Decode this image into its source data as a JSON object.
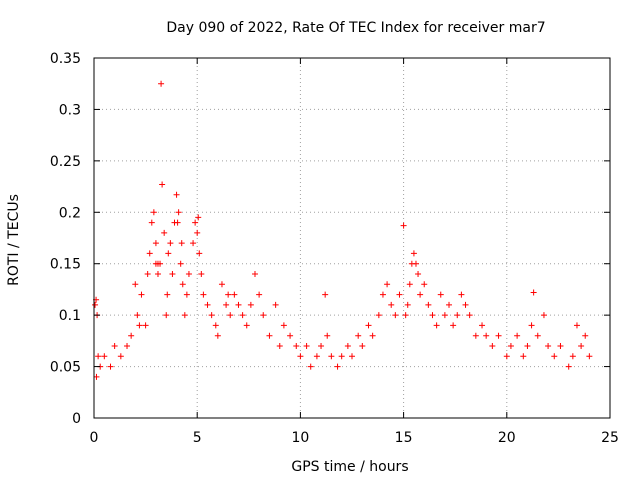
{
  "chart_data": {
    "type": "scatter",
    "title": "Day 090 of 2022, Rate Of TEC Index for receiver mar7",
    "xlabel": "GPS time / hours",
    "ylabel": "ROTI / TECUs",
    "xlim": [
      0,
      25
    ],
    "ylim": [
      0,
      0.35
    ],
    "x_ticks": [
      "0",
      "5",
      "10",
      "15",
      "20",
      "25"
    ],
    "y_ticks": [
      "0",
      "0.05",
      "0.1",
      "0.15",
      "0.2",
      "0.25",
      "0.3",
      "0.35"
    ],
    "grid": true,
    "marker": "+",
    "color": "#ff0000",
    "series": [
      {
        "x": [
          0.05,
          0.1,
          0.15,
          0.2,
          0.12,
          0.3,
          0.5,
          0.8,
          1.0,
          1.3,
          1.6,
          1.8,
          2.0,
          2.1,
          2.2,
          2.3,
          2.5,
          2.6,
          2.7,
          2.8,
          2.9,
          3.0,
          3.0,
          3.1,
          3.1,
          3.2,
          3.25,
          3.3,
          3.4,
          3.5,
          3.55,
          3.6,
          3.7,
          3.8,
          3.9,
          4.0,
          4.05,
          4.1,
          4.2,
          4.25,
          4.3,
          4.4,
          4.5,
          4.6,
          4.8,
          4.9,
          5.0,
          5.05,
          5.1,
          5.2,
          5.3,
          5.5,
          5.7,
          5.9,
          6.0,
          6.2,
          6.4,
          6.5,
          6.6,
          6.8,
          7.0,
          7.2,
          7.4,
          7.6,
          7.8,
          8.0,
          8.2,
          8.5,
          8.8,
          9.0,
          9.2,
          9.5,
          9.8,
          10.0,
          10.3,
          10.5,
          10.8,
          11.0,
          11.2,
          11.3,
          11.5,
          11.8,
          12.0,
          12.3,
          12.5,
          12.8,
          13.0,
          13.3,
          13.5,
          13.8,
          14.0,
          14.2,
          14.4,
          14.6,
          14.8,
          15.0,
          15.1,
          15.2,
          15.3,
          15.4,
          15.5,
          15.6,
          15.7,
          15.8,
          16.0,
          16.2,
          16.4,
          16.6,
          16.8,
          17.0,
          17.2,
          17.4,
          17.6,
          17.8,
          18.0,
          18.2,
          18.5,
          18.8,
          19.0,
          19.3,
          19.6,
          20.0,
          20.2,
          20.5,
          20.8,
          21.0,
          21.2,
          21.3,
          21.5,
          21.8,
          22.0,
          22.3,
          22.6,
          23.0,
          23.2,
          23.4,
          23.6,
          23.8,
          24.0
        ],
        "y": [
          0.11,
          0.115,
          0.1,
          0.06,
          0.04,
          0.05,
          0.06,
          0.05,
          0.07,
          0.06,
          0.07,
          0.08,
          0.13,
          0.1,
          0.09,
          0.12,
          0.09,
          0.14,
          0.16,
          0.19,
          0.2,
          0.17,
          0.15,
          0.14,
          0.15,
          0.15,
          0.325,
          0.227,
          0.18,
          0.1,
          0.12,
          0.16,
          0.17,
          0.14,
          0.19,
          0.217,
          0.19,
          0.2,
          0.15,
          0.17,
          0.13,
          0.1,
          0.12,
          0.14,
          0.17,
          0.19,
          0.18,
          0.195,
          0.16,
          0.14,
          0.12,
          0.11,
          0.1,
          0.09,
          0.08,
          0.13,
          0.11,
          0.12,
          0.1,
          0.12,
          0.11,
          0.1,
          0.09,
          0.11,
          0.14,
          0.12,
          0.1,
          0.08,
          0.11,
          0.07,
          0.09,
          0.08,
          0.07,
          0.06,
          0.07,
          0.05,
          0.06,
          0.07,
          0.12,
          0.08,
          0.06,
          0.05,
          0.06,
          0.07,
          0.06,
          0.08,
          0.07,
          0.09,
          0.08,
          0.1,
          0.12,
          0.13,
          0.11,
          0.1,
          0.12,
          0.187,
          0.1,
          0.11,
          0.13,
          0.15,
          0.16,
          0.15,
          0.14,
          0.12,
          0.13,
          0.11,
          0.1,
          0.09,
          0.12,
          0.1,
          0.11,
          0.09,
          0.1,
          0.12,
          0.11,
          0.1,
          0.08,
          0.09,
          0.08,
          0.07,
          0.08,
          0.06,
          0.07,
          0.08,
          0.06,
          0.07,
          0.09,
          0.122,
          0.08,
          0.1,
          0.07,
          0.06,
          0.07,
          0.05,
          0.06,
          0.09,
          0.07,
          0.08,
          0.06
        ]
      }
    ]
  }
}
